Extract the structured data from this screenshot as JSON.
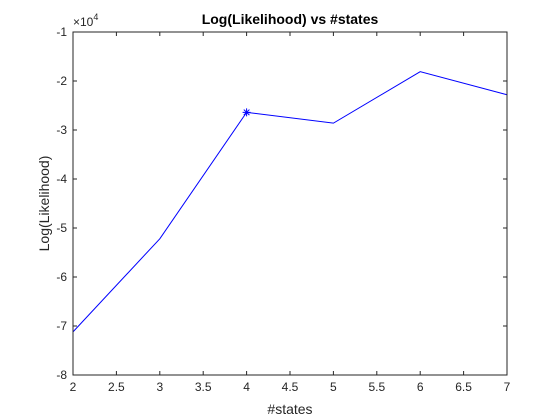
{
  "chart_data": {
    "type": "line",
    "title": "Log(Likelihood) vs #states",
    "xlabel": "#states",
    "ylabel": "Log(Likelihood)",
    "xlim": [
      2,
      7
    ],
    "ylim": [
      -8,
      -1
    ],
    "y_exponent_label": {
      "base": "×10",
      "power": "4"
    },
    "x_ticks": [
      2,
      2.5,
      3,
      3.5,
      4,
      4.5,
      5,
      5.5,
      6,
      6.5,
      7
    ],
    "x_tick_labels": [
      "2",
      "2.5",
      "3",
      "3.5",
      "4",
      "4.5",
      "5",
      "5.5",
      "6",
      "6.5",
      "7"
    ],
    "y_ticks": [
      -8,
      -7,
      -6,
      -5,
      -4,
      -3,
      -2,
      -1
    ],
    "y_tick_labels": [
      "-8",
      "-7",
      "-6",
      "-5",
      "-4",
      "-3",
      "-2",
      "-1"
    ],
    "grid": false,
    "series": [
      {
        "x": [
          2,
          3,
          4,
          5,
          6,
          7
        ],
        "y": [
          -7.12,
          -5.22,
          -2.64,
          -2.86,
          -1.81,
          -2.28
        ],
        "color": "#0000ff"
      }
    ],
    "marker": {
      "x": 4,
      "y": -2.64,
      "symbol": "asterisk",
      "color": "#0000ff"
    }
  }
}
